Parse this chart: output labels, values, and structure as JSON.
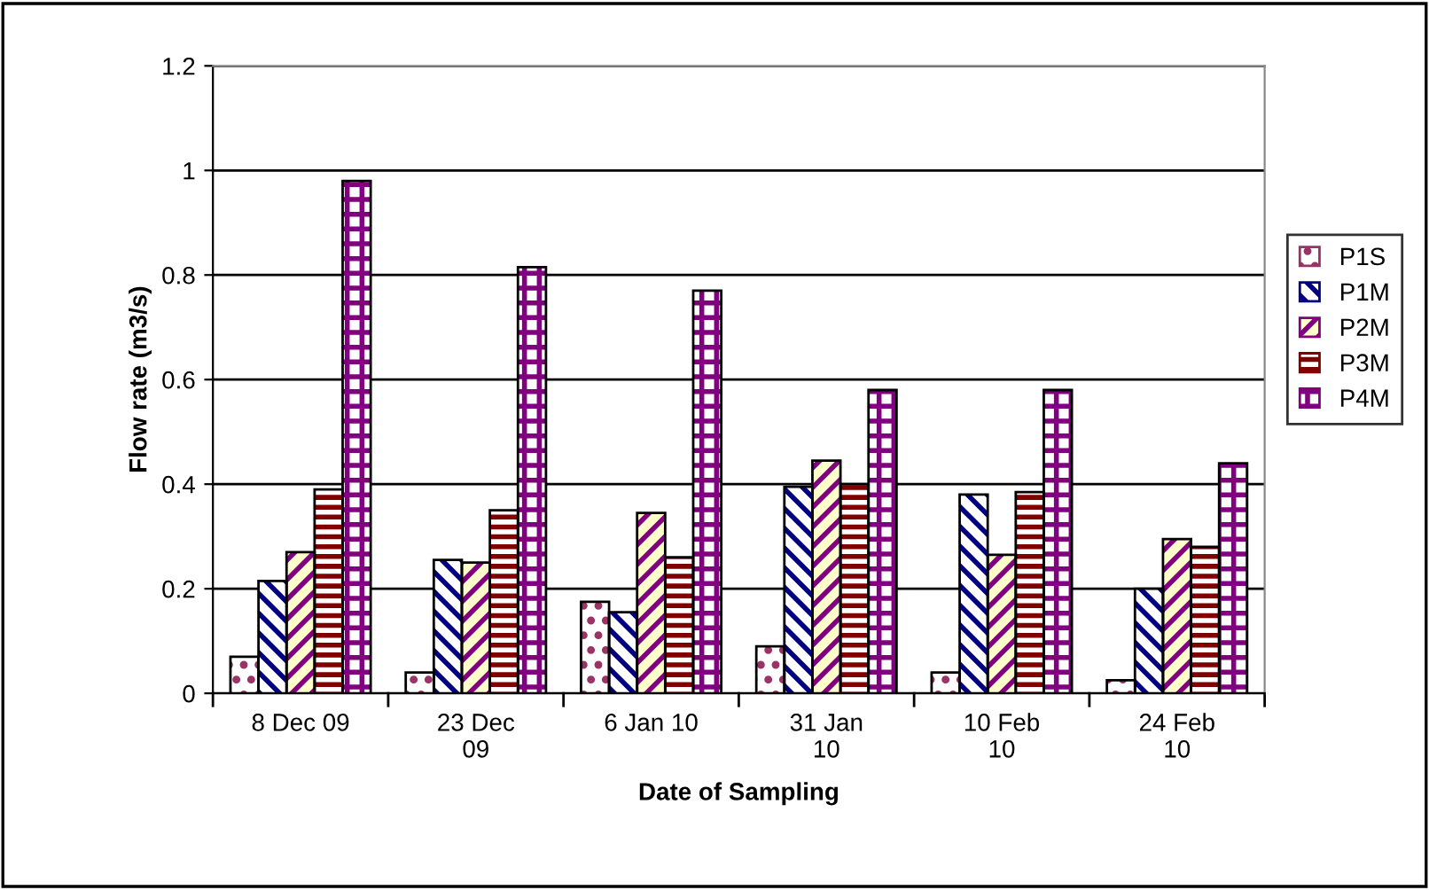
{
  "chart_data": {
    "type": "bar",
    "xlabel": "Date of Sampling",
    "ylabel": "Flow rate (m3/s)",
    "categories": [
      "8 Dec 09",
      "23 Dec 09",
      "6 Jan 10",
      "31 Jan 10",
      "10 Feb 10",
      "24 Feb 10"
    ],
    "series": [
      {
        "name": "P1S",
        "color": "#993366",
        "values": [
          0.07,
          0.04,
          0.175,
          0.09,
          0.04,
          0.025
        ]
      },
      {
        "name": "P1M",
        "color": "#000080",
        "values": [
          0.215,
          0.255,
          0.155,
          0.395,
          0.38,
          0.2
        ]
      },
      {
        "name": "P2M",
        "color": "#800080",
        "values": [
          0.27,
          0.25,
          0.345,
          0.445,
          0.265,
          0.295
        ]
      },
      {
        "name": "P3M",
        "color": "#800000",
        "values": [
          0.39,
          0.35,
          0.26,
          0.4,
          0.385,
          0.28
        ]
      },
      {
        "name": "P4M",
        "color": "#800080",
        "values": [
          0.98,
          0.815,
          0.77,
          0.58,
          0.58,
          0.44
        ]
      }
    ],
    "ylim": [
      0,
      1.2
    ],
    "yticks": [
      0,
      0.2,
      0.4,
      0.6,
      0.8,
      1,
      1.2
    ],
    "grid": "y",
    "legend": "right"
  }
}
